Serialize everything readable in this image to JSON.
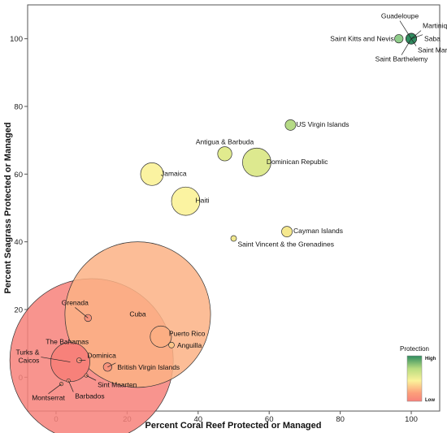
{
  "chart_data": {
    "type": "scatter",
    "xlabel": "Percent Coral Reef Protected or Managed",
    "ylabel": "Percent Seagrass Protected or Managed",
    "xlim": [
      -8,
      108
    ],
    "ylim": [
      -10,
      110
    ],
    "x_ticks": [
      0,
      20,
      40,
      60,
      80,
      100
    ],
    "y_ticks": [
      0,
      20,
      40,
      60,
      80,
      100
    ],
    "grid": false,
    "points": [
      {
        "label": "The Bahamas",
        "x": 10,
        "y": 5,
        "size": 23,
        "color": "#f7817a"
      },
      {
        "label": "Cuba",
        "x": 23,
        "y": 18.5,
        "size": 20.5,
        "color": "#fcb185"
      },
      {
        "label": "Puerto Rico",
        "x": 29.5,
        "y": 12,
        "size": 3,
        "color": "#fcae83"
      },
      {
        "label": "Turks & Caicos",
        "x": 4,
        "y": 4.5,
        "size": 5.5,
        "color": "#f7817a"
      },
      {
        "label": "Haiti",
        "x": 36.5,
        "y": 52,
        "size": 4,
        "color": "#fbf3a1"
      },
      {
        "label": "Jamaica",
        "x": 27,
        "y": 60,
        "size": 3.2,
        "color": "#fbf3a1"
      },
      {
        "label": "Dominican Republic",
        "x": 56.5,
        "y": 63.5,
        "size": 4,
        "color": "#dde98f"
      },
      {
        "label": "Antigua & Barbuda",
        "x": 47.5,
        "y": 66,
        "size": 2,
        "color": "#e1eb8e"
      },
      {
        "label": "US Virgin Islands",
        "x": 66,
        "y": 74.5,
        "size": 1.5,
        "color": "#b5da85"
      },
      {
        "label": "Cayman Islands",
        "x": 65,
        "y": 43,
        "size": 1.5,
        "color": "#f5e88e"
      },
      {
        "label": "Saint Vincent & the Grenadines",
        "x": 50,
        "y": 41,
        "size": 0.8,
        "color": "#f1e88e"
      },
      {
        "label": "Grenada",
        "x": 9,
        "y": 17.5,
        "size": 1,
        "color": "#f8937c"
      },
      {
        "label": "Anguilla",
        "x": 32.5,
        "y": 9.5,
        "size": 0.8,
        "color": "#fcc78a"
      },
      {
        "label": "British Virgin Islands",
        "x": 14.5,
        "y": 3,
        "size": 1.2,
        "color": "#f8937c"
      },
      {
        "label": "Dominica",
        "x": 6.5,
        "y": 5,
        "size": 0.7,
        "color": "#f8937c"
      },
      {
        "label": "Sint Maarten",
        "x": 8.5,
        "y": 0.5,
        "size": 0.5,
        "color": "#f8937c"
      },
      {
        "label": "Barbados",
        "x": 3.5,
        "y": -1,
        "size": 0.5,
        "color": "#f8937c"
      },
      {
        "label": "Montserrat",
        "x": 1.5,
        "y": -2,
        "size": 0.5,
        "color": "#f8937c"
      },
      {
        "label": "Saint Kitts and Nevis",
        "x": 96.5,
        "y": 100,
        "size": 1.2,
        "color": "#8fcd8a"
      },
      {
        "label": "Guadeloupe",
        "x": 100,
        "y": 100,
        "size": 1.5,
        "color": "#2f8c5f"
      },
      {
        "label": "Martinique",
        "x": 100,
        "y": 100,
        "size": 1.5,
        "color": "#2f8c5f"
      },
      {
        "label": "Saba",
        "x": 100,
        "y": 100,
        "size": 1.5,
        "color": "#2f8c5f"
      },
      {
        "label": "Saint Martin",
        "x": 100,
        "y": 100,
        "size": 1.5,
        "color": "#2f8c5f"
      },
      {
        "label": "Saint Barthelemy",
        "x": 100,
        "y": 100,
        "size": 1.5,
        "color": "#2f8c5f"
      }
    ],
    "legend": {
      "title": "Protection",
      "high_label": "High",
      "low_label": "Low",
      "position": "bottom-right",
      "colors": [
        "#2f8c5f",
        "#b8dc80",
        "#fbf29a",
        "#fc9e7a",
        "#f7817a"
      ]
    }
  }
}
